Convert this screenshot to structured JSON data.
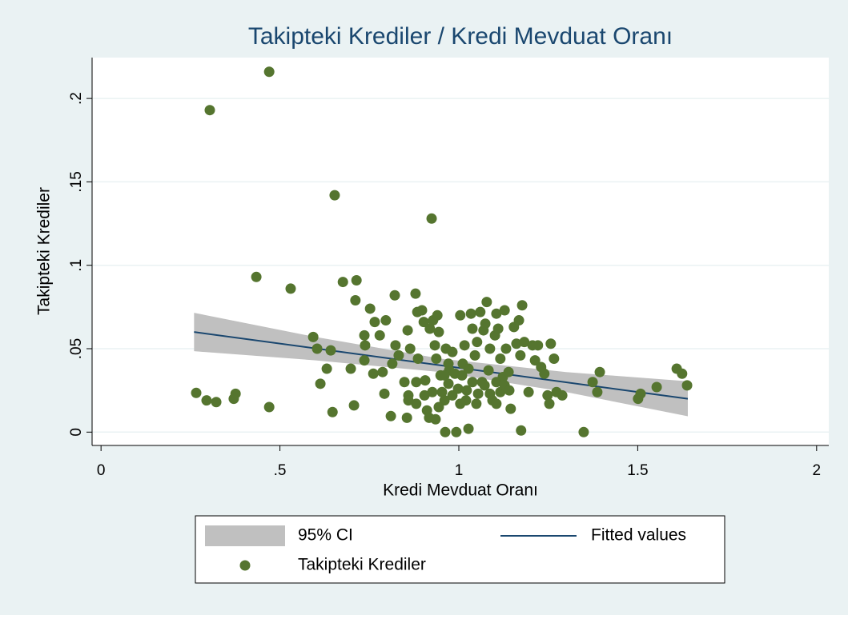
{
  "chart_data": {
    "type": "scatter",
    "title": "Takipteki Krediler / Kredi Mevduat Oranı",
    "xlabel": "Kredi Mevduat Oranı",
    "ylabel": "Takipteki Krediler",
    "xlim": [
      -0.025,
      2.034
    ],
    "ylim": [
      -0.008,
      0.2245
    ],
    "xticks": [
      0,
      {
        "value": 0.5,
        "label": ".5"
      },
      1,
      1.5,
      2
    ],
    "yticks": [
      0,
      {
        "value": 0.05,
        "label": ".05"
      },
      {
        "value": 0.1,
        "label": ".1"
      },
      {
        "value": 0.15,
        "label": ".15"
      },
      {
        "value": 0.2,
        "label": ".2"
      }
    ],
    "grid": true,
    "series": [
      {
        "name": "95% CI",
        "type": "area",
        "color": "#c0c0c0",
        "x": [
          0.26,
          0.6,
          0.95,
          1.3,
          1.64
        ],
        "lower": [
          0.0485,
          0.043,
          0.036,
          0.024,
          0.0095
        ],
        "upper": [
          0.0715,
          0.057,
          0.044,
          0.036,
          0.0305
        ]
      },
      {
        "name": "Fitted values",
        "type": "line",
        "color": "#1a476f",
        "x": [
          0.26,
          1.64
        ],
        "values": [
          0.06,
          0.02
        ]
      },
      {
        "name": "Takipteki Krediler",
        "type": "points",
        "color": "#55752f",
        "x": [
          0.47,
          0.304,
          0.653,
          0.924,
          0.434,
          0.53,
          0.676,
          0.714,
          0.711,
          0.266,
          0.295,
          0.322,
          0.376,
          0.371,
          0.47,
          0.593,
          0.604,
          0.613,
          0.631,
          0.642,
          0.647,
          0.698,
          0.707,
          0.736,
          0.738,
          0.736,
          0.752,
          0.765,
          0.779,
          0.796,
          0.761,
          0.787,
          0.792,
          0.81,
          0.821,
          0.814,
          0.823,
          0.832,
          0.848,
          0.857,
          0.859,
          0.879,
          0.884,
          0.897,
          0.902,
          0.864,
          0.855,
          0.886,
          0.906,
          0.911,
          0.919,
          0.928,
          0.94,
          0.944,
          0.933,
          0.937,
          0.917,
          0.935,
          0.949,
          0.953,
          0.962,
          0.964,
          0.973,
          0.982,
          0.993,
          0.989,
          1.004,
          1.011,
          1.016,
          1.02,
          1.027,
          1.034,
          1.038,
          1.045,
          1.051,
          1.06,
          1.065,
          1.069,
          1.074,
          1.078,
          1.083,
          1.087,
          1.094,
          1.101,
          1.105,
          1.11,
          1.116,
          1.123,
          1.128,
          1.132,
          1.139,
          1.145,
          1.154,
          1.161,
          1.168,
          1.172,
          1.177,
          1.174,
          1.183,
          1.195,
          1.206,
          1.213,
          1.221,
          1.23,
          1.239,
          1.248,
          1.253,
          1.257,
          1.266,
          1.273,
          1.289,
          1.349,
          1.374,
          1.387,
          1.394,
          1.501,
          1.508,
          1.553,
          1.609,
          1.624,
          1.638,
          0.926,
          0.96,
          0.971,
          0.982,
          0.998,
          1.009,
          1.022,
          1.038,
          1.054,
          1.072,
          1.087,
          1.105,
          1.116,
          1.128,
          1.141,
          0.881,
          0.904,
          0.944,
          0.96,
          1.004,
          1.049,
          1.105,
          0.971,
          1.027,
          0.881,
          0.859
        ],
        "values": [
          0.216,
          0.193,
          0.142,
          0.128,
          0.093,
          0.086,
          0.09,
          0.091,
          0.079,
          0.0235,
          0.019,
          0.018,
          0.023,
          0.02,
          0.015,
          0.057,
          0.05,
          0.029,
          0.038,
          0.049,
          0.012,
          0.038,
          0.016,
          0.058,
          0.052,
          0.043,
          0.074,
          0.066,
          0.058,
          0.067,
          0.035,
          0.036,
          0.023,
          0.0096,
          0.082,
          0.041,
          0.052,
          0.046,
          0.03,
          0.061,
          0.022,
          0.083,
          0.072,
          0.073,
          0.066,
          0.05,
          0.0086,
          0.044,
          0.031,
          0.013,
          0.062,
          0.067,
          0.07,
          0.06,
          0.052,
          0.044,
          0.0086,
          0.0077,
          0.034,
          0.024,
          0.0,
          0.05,
          0.037,
          0.048,
          0.0,
          0.035,
          0.07,
          0.041,
          0.052,
          0.019,
          0.002,
          0.071,
          0.062,
          0.046,
          0.054,
          0.072,
          0.03,
          0.061,
          0.065,
          0.078,
          0.037,
          0.05,
          0.019,
          0.058,
          0.071,
          0.062,
          0.044,
          0.033,
          0.073,
          0.05,
          0.036,
          0.014,
          0.063,
          0.053,
          0.067,
          0.046,
          0.076,
          0.001,
          0.054,
          0.024,
          0.052,
          0.043,
          0.052,
          0.039,
          0.035,
          0.022,
          0.017,
          0.053,
          0.044,
          0.024,
          0.022,
          0.0,
          0.03,
          0.024,
          0.036,
          0.02,
          0.023,
          0.027,
          0.038,
          0.035,
          0.028,
          0.024,
          0.019,
          0.029,
          0.022,
          0.026,
          0.034,
          0.025,
          0.03,
          0.023,
          0.028,
          0.023,
          0.03,
          0.024,
          0.028,
          0.025,
          0.017,
          0.022,
          0.015,
          0.034,
          0.017,
          0.017,
          0.017,
          0.041,
          0.038,
          0.03,
          0.019
        ]
      }
    ]
  }
}
